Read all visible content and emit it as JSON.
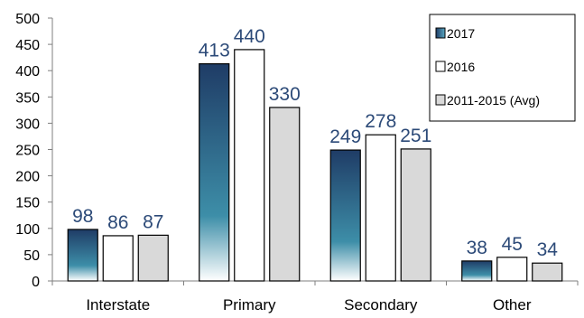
{
  "chart_data": {
    "type": "bar",
    "categories": [
      "Interstate",
      "Primary",
      "Secondary",
      "Other"
    ],
    "series": [
      {
        "name": "2017",
        "values": [
          98,
          413,
          249,
          38
        ],
        "color": "#1f3f6b",
        "gradient_to": "#e8f6fb"
      },
      {
        "name": "2016",
        "values": [
          86,
          440,
          278,
          45
        ],
        "color": "#ffffff"
      },
      {
        "name": "2011-2015 (Avg)",
        "values": [
          87,
          330,
          251,
          34
        ],
        "color": "#d9d9d9"
      }
    ],
    "data_labels": [
      [
        "98",
        "86",
        "87"
      ],
      [
        "413",
        "440",
        "330"
      ],
      [
        "249",
        "278",
        "251"
      ],
      [
        "38",
        "45",
        "34"
      ]
    ],
    "ylim": [
      0,
      500
    ],
    "yticks": [
      0,
      50,
      100,
      150,
      200,
      250,
      300,
      350,
      400,
      450,
      500
    ],
    "ytick_labels": [
      "0",
      "50",
      "100",
      "150",
      "200",
      "250",
      "300",
      "350",
      "400",
      "450",
      "500"
    ],
    "title": "",
    "xlabel": "",
    "ylabel": "",
    "legend": "top-right",
    "grid": false,
    "label_color": "#2c4a78"
  }
}
